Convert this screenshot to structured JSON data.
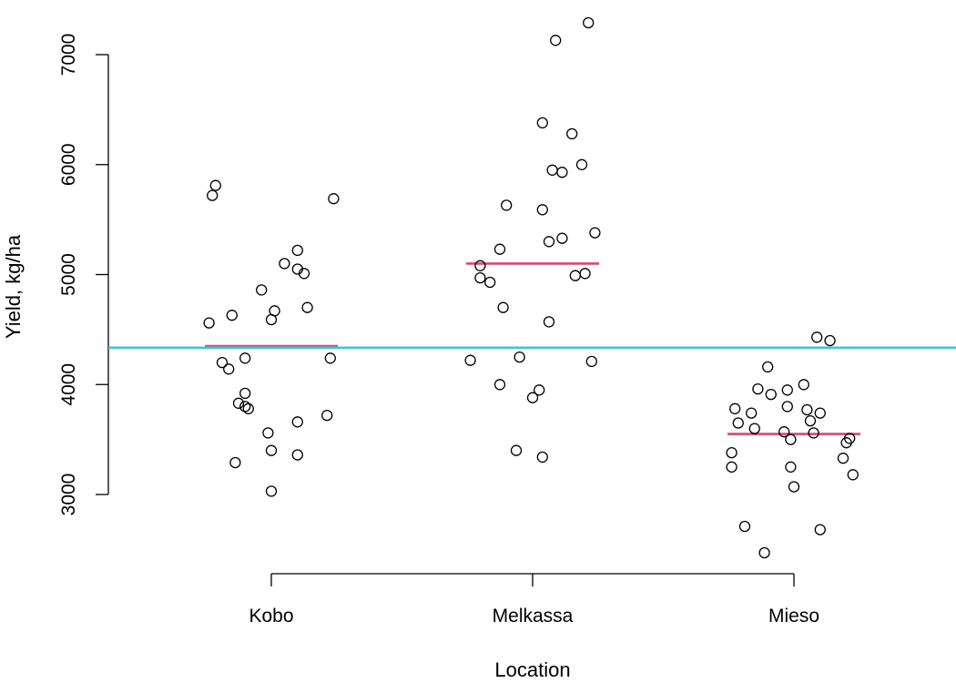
{
  "chart_data": {
    "type": "scatter",
    "title": "",
    "xlabel": "Location",
    "ylabel": "Yield, kg/ha",
    "categories": [
      "Kobo",
      "Melkassa",
      "Mieso"
    ],
    "yticks": [
      3000,
      4000,
      5000,
      6000,
      7000
    ],
    "ylim": [
      2400,
      7300
    ],
    "grid": false,
    "legend": "none",
    "overall_mean": 4335,
    "group_means": [
      4350,
      5100,
      3550
    ],
    "colors": {
      "overall_mean_line": "#40c4dc",
      "group_mean_line": "#d9477a",
      "points": "#000000"
    },
    "series": [
      {
        "category": "Kobo",
        "points": [
          [
            -0.17,
            5810
          ],
          [
            -0.18,
            5720
          ],
          [
            0.19,
            5690
          ],
          [
            0.08,
            5220
          ],
          [
            0.04,
            5100
          ],
          [
            0.08,
            5050
          ],
          [
            0.1,
            5010
          ],
          [
            -0.03,
            4860
          ],
          [
            0.11,
            4700
          ],
          [
            0.01,
            4670
          ],
          [
            -0.12,
            4630
          ],
          [
            0.0,
            4590
          ],
          [
            -0.19,
            4560
          ],
          [
            0.18,
            4240
          ],
          [
            -0.08,
            4240
          ],
          [
            -0.15,
            4200
          ],
          [
            -0.13,
            4140
          ],
          [
            -0.08,
            3920
          ],
          [
            -0.1,
            3830
          ],
          [
            -0.08,
            3800
          ],
          [
            -0.07,
            3780
          ],
          [
            0.17,
            3720
          ],
          [
            0.08,
            3660
          ],
          [
            -0.01,
            3560
          ],
          [
            0.0,
            3400
          ],
          [
            0.08,
            3360
          ],
          [
            -0.11,
            3290
          ],
          [
            0.0,
            3030
          ]
        ]
      },
      {
        "category": "Melkassa",
        "points": [
          [
            0.17,
            7290
          ],
          [
            0.07,
            7130
          ],
          [
            0.03,
            6380
          ],
          [
            0.12,
            6280
          ],
          [
            0.15,
            6000
          ],
          [
            0.06,
            5950
          ],
          [
            0.09,
            5930
          ],
          [
            -0.08,
            5630
          ],
          [
            0.03,
            5590
          ],
          [
            0.19,
            5380
          ],
          [
            0.09,
            5330
          ],
          [
            0.05,
            5300
          ],
          [
            -0.1,
            5230
          ],
          [
            -0.16,
            5080
          ],
          [
            0.16,
            5010
          ],
          [
            0.13,
            4990
          ],
          [
            -0.16,
            4970
          ],
          [
            -0.13,
            4930
          ],
          [
            -0.09,
            4700
          ],
          [
            0.05,
            4570
          ],
          [
            -0.04,
            4250
          ],
          [
            -0.19,
            4220
          ],
          [
            0.18,
            4210
          ],
          [
            -0.1,
            4000
          ],
          [
            0.02,
            3950
          ],
          [
            0.0,
            3880
          ],
          [
            -0.05,
            3400
          ],
          [
            0.03,
            3340
          ]
        ]
      },
      {
        "category": "Mieso",
        "points": [
          [
            0.07,
            4430
          ],
          [
            0.11,
            4400
          ],
          [
            -0.08,
            4160
          ],
          [
            0.03,
            4000
          ],
          [
            -0.11,
            3960
          ],
          [
            -0.02,
            3950
          ],
          [
            -0.07,
            3910
          ],
          [
            -0.02,
            3800
          ],
          [
            0.04,
            3770
          ],
          [
            -0.18,
            3780
          ],
          [
            0.08,
            3740
          ],
          [
            -0.13,
            3740
          ],
          [
            0.05,
            3670
          ],
          [
            -0.17,
            3650
          ],
          [
            -0.12,
            3600
          ],
          [
            -0.03,
            3570
          ],
          [
            0.06,
            3560
          ],
          [
            0.17,
            3510
          ],
          [
            -0.01,
            3500
          ],
          [
            0.16,
            3470
          ],
          [
            -0.19,
            3380
          ],
          [
            0.15,
            3330
          ],
          [
            -0.19,
            3250
          ],
          [
            -0.01,
            3250
          ],
          [
            0.18,
            3180
          ],
          [
            0.0,
            3070
          ],
          [
            -0.15,
            2710
          ],
          [
            0.08,
            2680
          ],
          [
            -0.09,
            2470
          ]
        ]
      }
    ]
  }
}
